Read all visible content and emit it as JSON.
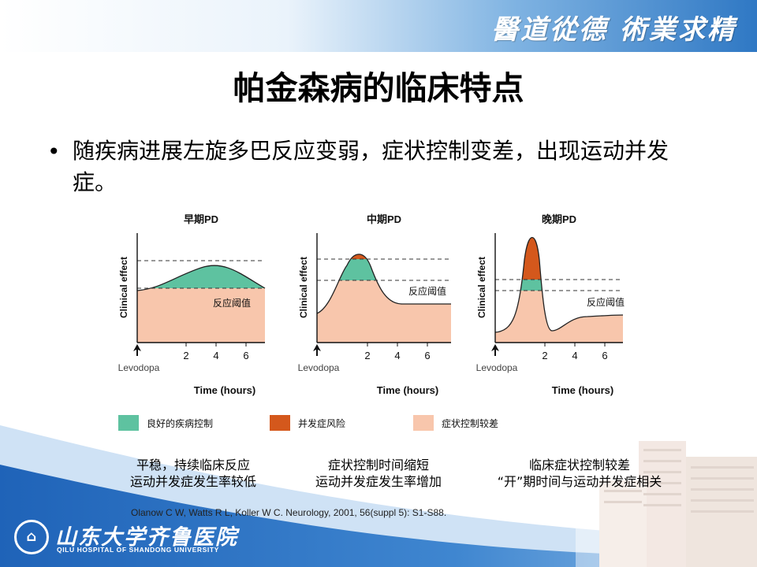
{
  "header": {
    "motto": "醫道從德 術業求精"
  },
  "slide": {
    "title": "帕金森病的临床特点",
    "bullet_text": "随疾病进展左旋多巴反应变弱，症状控制变差，出现运动并发症。"
  },
  "panels": [
    {
      "title": "早期PD",
      "threshold_label": "反应阈值"
    },
    {
      "title": "中期PD",
      "threshold_label": "反应阈值"
    },
    {
      "title": "晚期PD",
      "threshold_label": "反应阈值"
    }
  ],
  "axes": {
    "ylabel": "Clinical effect",
    "xlabel": "Time (hours)",
    "xticks": [
      "2",
      "4",
      "6"
    ],
    "start_label": "Levodopa"
  },
  "legend": [
    {
      "label": "良好的疾病控制",
      "color": "#5ec2a0"
    },
    {
      "label": "并发症风险",
      "color": "#d4581c"
    },
    {
      "label": "症状控制较差",
      "color": "#f8c6ac"
    }
  ],
  "captions": [
    {
      "line1": "平稳，持续临床反应",
      "line2": "运动并发症发生率较低"
    },
    {
      "line1": "症状控制时间缩短",
      "line2": "运动并发症发生率增加"
    },
    {
      "line1": "临床症状控制较差",
      "line2": "“开”期时间与运动并发症相关"
    }
  ],
  "citation": "Olanow C W, Watts R L, Koller W C. Neurology, 2001, 56(suppl 5): S1-S88.",
  "footer": {
    "logo_symbol": "⌂",
    "hospital_cn": "山东大学齐鲁医院",
    "hospital_en": "QILU HOSPITAL OF SHANDONG UNIVERSITY"
  }
}
